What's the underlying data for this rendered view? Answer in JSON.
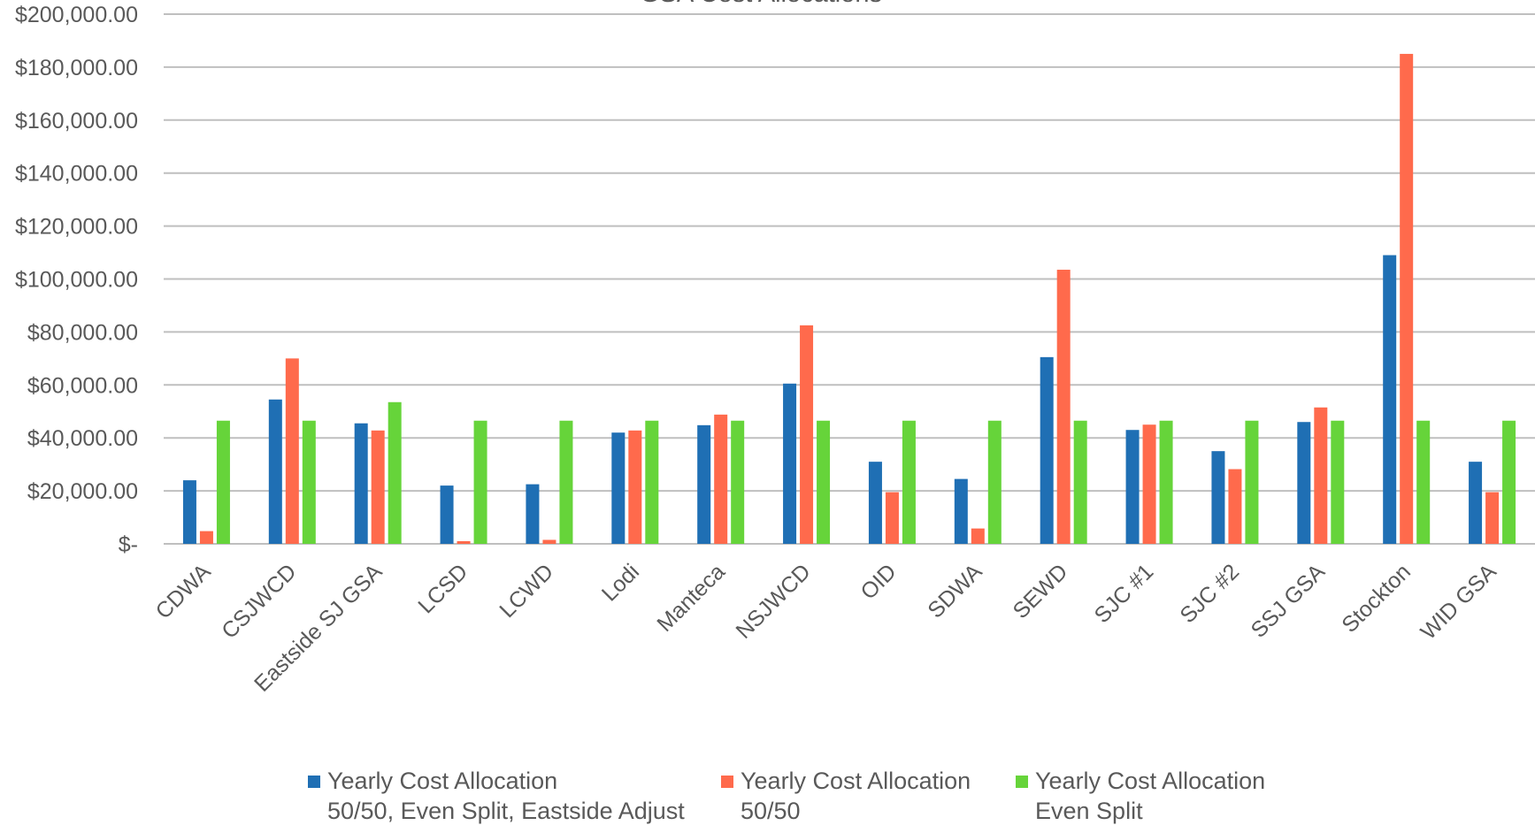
{
  "chart_data": {
    "type": "bar",
    "title": "GSA Cost Allocations",
    "categories": [
      "CDWA",
      "CSJWCD",
      "Eastside SJ GSA",
      "LCSD",
      "LCWD",
      "Lodi",
      "Manteca",
      "NSJWCD",
      "OID",
      "SDWA",
      "SEWD",
      "SJC #1",
      "SJC #2",
      "SSJ GSA",
      "Stockton",
      "WID GSA"
    ],
    "series": [
      {
        "name": "Yearly Cost Allocation\n50/50, Even Split, Eastside Adjust",
        "color": "#1f6fb4",
        "values": [
          24000,
          54500,
          45500,
          22000,
          22500,
          42000,
          44800,
          60500,
          31000,
          24500,
          70500,
          43000,
          35000,
          46000,
          109000,
          31000
        ]
      },
      {
        "name": "Yearly Cost Allocation\n50/50",
        "color": "#ff6a4c",
        "values": [
          4800,
          70000,
          42800,
          1000,
          1500,
          42800,
          48800,
          82500,
          19500,
          5800,
          103500,
          45000,
          28200,
          51500,
          185000,
          19500
        ]
      },
      {
        "name": "Yearly Cost Allocation\nEven Split",
        "color": "#66d43a",
        "values": [
          46500,
          46500,
          53500,
          46500,
          46500,
          46500,
          46500,
          46500,
          46500,
          46500,
          46500,
          46500,
          46500,
          46500,
          46500,
          46500
        ]
      }
    ],
    "ylim": [
      0,
      200000
    ],
    "yticks": [
      0,
      20000,
      40000,
      60000,
      80000,
      100000,
      120000,
      140000,
      160000,
      180000,
      200000
    ],
    "ytick_labels": [
      "$-",
      "$20,000.00",
      "$40,000.00",
      "$60,000.00",
      "$80,000.00",
      "$100,000.00",
      "$120,000.00",
      "$140,000.00",
      "$160,000.00",
      "$180,000.00",
      "$200,000.00"
    ],
    "xlabel": "",
    "ylabel": "",
    "grid": true,
    "legend_position": "bottom"
  }
}
